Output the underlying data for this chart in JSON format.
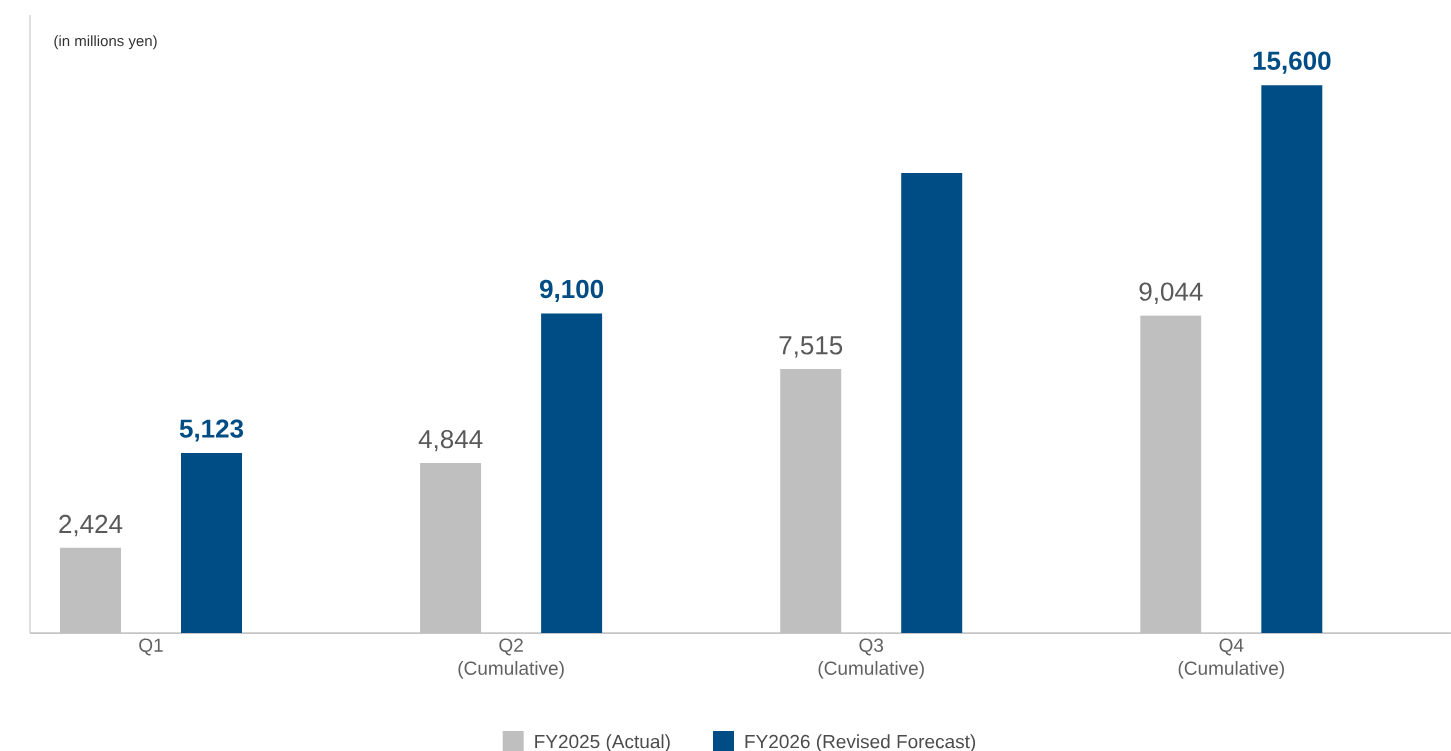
{
  "chart_data": {
    "type": "bar",
    "categories": [
      "Q1",
      "Q2 (Cumulative)",
      "Q3 (Cumulative)",
      "Q4 (Cumulative)"
    ],
    "series": [
      {
        "name": "FY2025 (Actual)",
        "color": "#bfbfbf",
        "values": [
          2424,
          4844,
          7515,
          9044
        ],
        "value_labels": [
          "2,424",
          "4,844",
          "7,515",
          "9,044"
        ]
      },
      {
        "name": "FY2026 (Revised Forecast)",
        "color": "#004c84",
        "values": [
          5123,
          9100,
          13100,
          15600
        ],
        "value_labels": [
          "5,123",
          "9,100",
          null,
          "15,600"
        ]
      }
    ],
    "ylim": [
      0,
      17600
    ],
    "tick_labels": "x",
    "legend": "bottom",
    "annotations": [
      "(in millions yen)"
    ]
  }
}
